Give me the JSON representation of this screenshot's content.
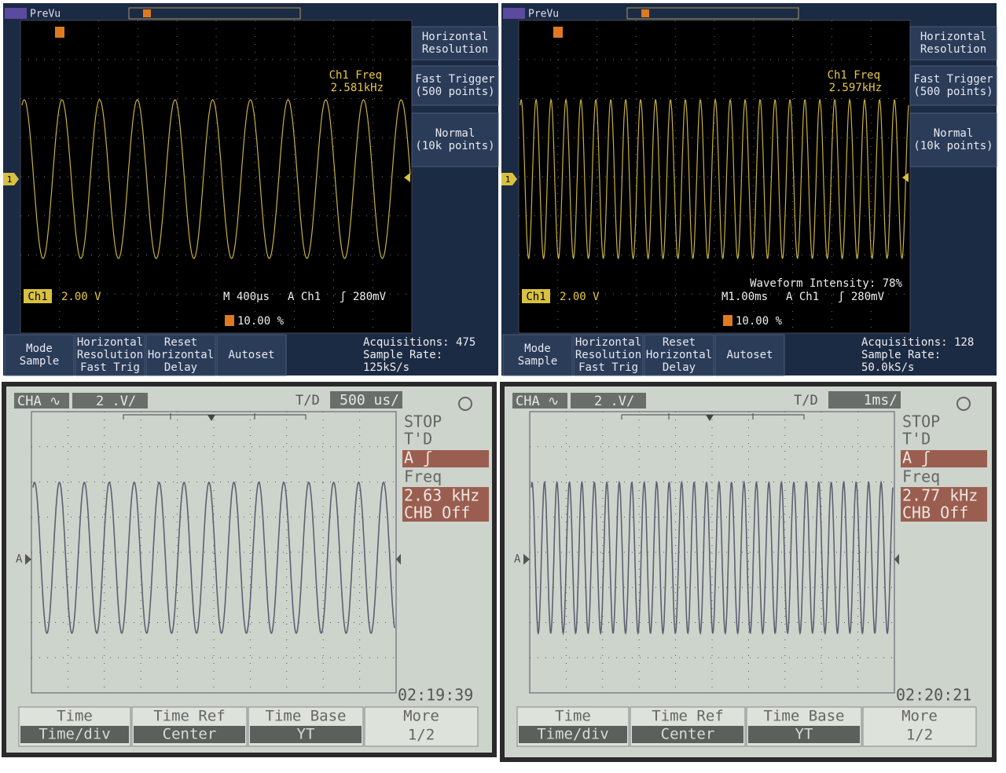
{
  "scope_captures": [
    {
      "status": "PreVu",
      "ground_marker": "1",
      "side_menu": [
        [
          "Horizontal",
          "Resolution"
        ],
        [
          "Fast Trigger",
          "(500 points)"
        ],
        [
          "Normal",
          "(10k points)"
        ]
      ],
      "freq_label": "Ch1 Freq",
      "freq_value": "2.581kHz",
      "channel": "Ch1",
      "volts_div": "2.00 V",
      "timebase": "M 400µs",
      "trigger_source": "A  Ch1",
      "trigger_level": "ʃ  280mV",
      "trigger_position": "10.00 %",
      "bottom_menu": [
        [
          "Mode",
          "Sample"
        ],
        [
          "Horizontal",
          "Resolution",
          "Fast Trig"
        ],
        [
          "Reset",
          "Horizontal",
          "Delay"
        ],
        [
          "Autoset"
        ]
      ],
      "acquisitions": "Acquisitions: 475",
      "sample_rate": [
        "Sample Rate:",
        "125kS/s"
      ]
    },
    {
      "status": "PreVu",
      "ground_marker": "1",
      "side_menu": [
        [
          "Horizontal",
          "Resolution"
        ],
        [
          "Fast Trigger",
          "(500 points)"
        ],
        [
          "Normal",
          "(10k points)"
        ]
      ],
      "freq_label": "Ch1 Freq",
      "freq_value": "2.597kHz",
      "channel": "Ch1",
      "volts_div": "2.00 V",
      "intensity": "Waveform Intensity:  78%",
      "timebase": "M1.00ms",
      "trigger_source": "A  Ch1",
      "trigger_level": "ʃ  280mV",
      "trigger_position": "10.00 %",
      "bottom_menu": [
        [
          "Mode",
          "Sample"
        ],
        [
          "Horizontal",
          "Resolution",
          "Fast Trig"
        ],
        [
          "Reset",
          "Horizontal",
          "Delay"
        ],
        [
          "Autoset"
        ]
      ],
      "acquisitions": "Acquisitions: 128",
      "sample_rate": [
        "Sample Rate:",
        "50.0kS/s"
      ]
    },
    {
      "channel": "CHA ∿",
      "volts_div": "2 .V/",
      "td_label": "T/D",
      "time_div": "500 us/",
      "ground_marker": "A",
      "side": [
        "STOP",
        "T'D",
        "A ʃ",
        "Freq",
        "2.63 kHz",
        "CHB Off"
      ],
      "clock": "02:19:39",
      "bottom_menu": [
        [
          "Time",
          "Time/div"
        ],
        [
          "Time Ref",
          "Center"
        ],
        [
          "Time Base",
          "YT"
        ],
        [
          "More",
          "1/2"
        ]
      ]
    },
    {
      "channel": "CHA ∿",
      "volts_div": "2 .V/",
      "td_label": "T/D",
      "time_div": "1ms/",
      "ground_marker": "A",
      "side": [
        "STOP",
        "T'D",
        "A ʃ",
        "Freq",
        "2.77 kHz",
        "CHB Off"
      ],
      "clock": "02:20:21",
      "bottom_menu": [
        [
          "Time",
          "Time/div"
        ],
        [
          "Time Ref",
          "Center"
        ],
        [
          "Time Base",
          "YT"
        ],
        [
          "More",
          "1/2"
        ]
      ]
    }
  ]
}
